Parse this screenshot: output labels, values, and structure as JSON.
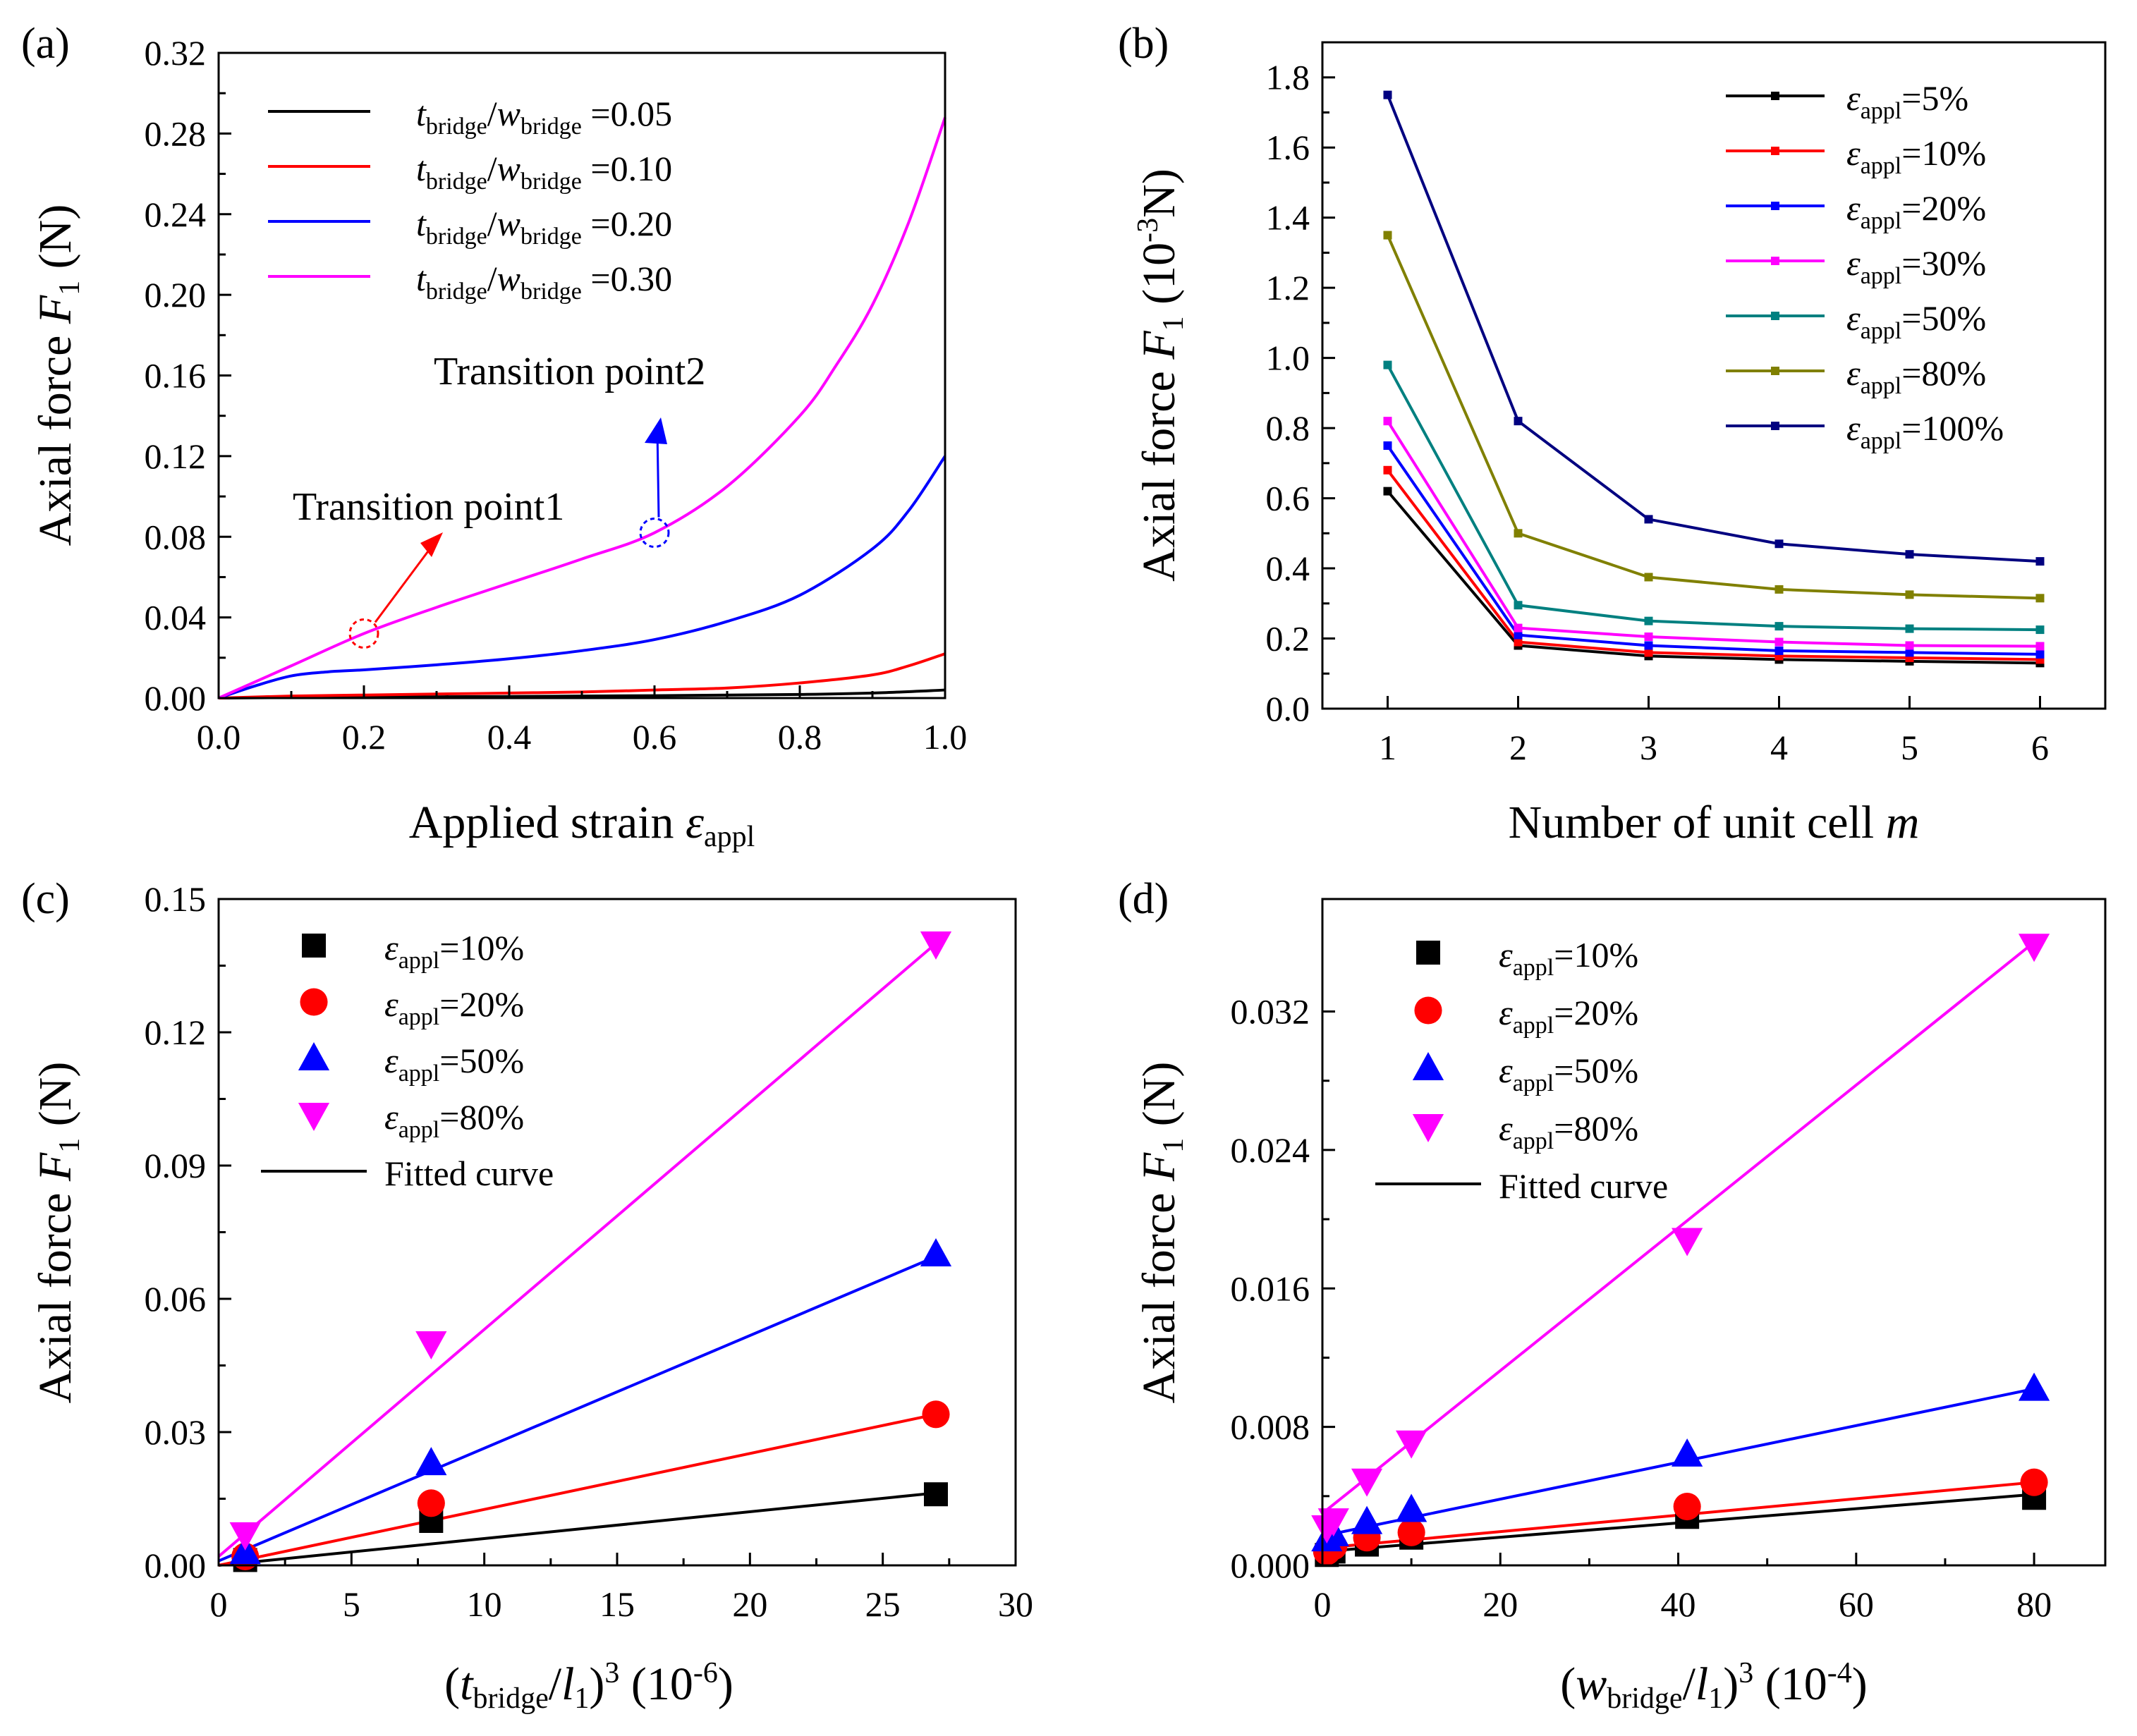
{
  "chart_data": [
    {
      "panel": "(a)",
      "type": "line",
      "xlabel": "Applied strain εappl",
      "ylabel": "Axial force F1 (N)",
      "xlim": [
        0,
        1.0
      ],
      "ylim": [
        0,
        0.32
      ],
      "xticks": [
        "0.0",
        "0.2",
        "0.4",
        "0.6",
        "0.8",
        "1.0"
      ],
      "yticks": [
        "0.00",
        "0.04",
        "0.08",
        "0.12",
        "0.16",
        "0.20",
        "0.24",
        "0.28",
        "0.32"
      ],
      "legend_position": "top-left",
      "series": [
        {
          "name": "tbridge/wbridge =0.05",
          "color": "#000000",
          "x": [
            0,
            0.2,
            0.4,
            0.6,
            0.8,
            0.9,
            1.0
          ],
          "y": [
            0,
            0.0005,
            0.0008,
            0.0012,
            0.0018,
            0.0025,
            0.004
          ]
        },
        {
          "name": "tbridge/wbridge =0.10",
          "color": "#ff0000",
          "x": [
            0,
            0.1,
            0.2,
            0.3,
            0.4,
            0.5,
            0.6,
            0.7,
            0.8,
            0.9,
            0.95,
            1.0
          ],
          "y": [
            0,
            0.001,
            0.0015,
            0.002,
            0.0025,
            0.003,
            0.004,
            0.005,
            0.0075,
            0.0115,
            0.016,
            0.022
          ]
        },
        {
          "name": "tbridge/wbridge =0.20",
          "color": "#0000ff",
          "x": [
            0,
            0.05,
            0.1,
            0.15,
            0.2,
            0.3,
            0.4,
            0.5,
            0.6,
            0.7,
            0.8,
            0.9,
            0.95,
            1.0
          ],
          "y": [
            0,
            0.006,
            0.011,
            0.013,
            0.014,
            0.0165,
            0.0195,
            0.0235,
            0.029,
            0.038,
            0.051,
            0.074,
            0.093,
            0.12
          ]
        },
        {
          "name": "tbridge/wbridge =0.30",
          "color": "#ff00ff",
          "x": [
            0,
            0.1,
            0.2,
            0.3,
            0.4,
            0.5,
            0.6,
            0.7,
            0.8,
            0.85,
            0.9,
            0.95,
            1.0
          ],
          "y": [
            0,
            0.016,
            0.032,
            0.045,
            0.057,
            0.069,
            0.082,
            0.105,
            0.14,
            0.165,
            0.195,
            0.236,
            0.288
          ]
        }
      ],
      "annotations": [
        {
          "text": "Transition point1",
          "x": 0.2,
          "y": 0.032,
          "color": "#ff0000"
        },
        {
          "text": "Transition point2",
          "x": 0.6,
          "y": 0.082,
          "color": "#0000ff"
        }
      ]
    },
    {
      "panel": "(b)",
      "type": "line",
      "xlabel": "Number of unit cell m",
      "ylabel": "Axial force F1 (10-3N)",
      "xlim": [
        0.5,
        6.5
      ],
      "ylim": [
        0,
        1.9
      ],
      "xticks": [
        "1",
        "2",
        "3",
        "4",
        "5",
        "6"
      ],
      "yticks": [
        "0.0",
        "0.2",
        "0.4",
        "0.6",
        "0.8",
        "1.0",
        "1.2",
        "1.4",
        "1.6",
        "1.8"
      ],
      "legend_position": "top-right",
      "x": [
        1,
        2,
        3,
        4,
        5,
        6
      ],
      "series": [
        {
          "name": "εappl=5%",
          "color": "#000000",
          "values": [
            0.62,
            0.18,
            0.15,
            0.14,
            0.135,
            0.13
          ]
        },
        {
          "name": "εappl=10%",
          "color": "#ff0000",
          "values": [
            0.68,
            0.19,
            0.16,
            0.15,
            0.145,
            0.14
          ]
        },
        {
          "name": "εappl=20%",
          "color": "#0000ff",
          "values": [
            0.75,
            0.21,
            0.18,
            0.165,
            0.16,
            0.155
          ]
        },
        {
          "name": "εappl=30%",
          "color": "#ff00ff",
          "values": [
            0.82,
            0.23,
            0.205,
            0.19,
            0.18,
            0.178
          ]
        },
        {
          "name": "εappl=50%",
          "color": "#008080",
          "values": [
            0.98,
            0.295,
            0.25,
            0.235,
            0.228,
            0.225
          ]
        },
        {
          "name": "εappl=80%",
          "color": "#808000",
          "values": [
            1.35,
            0.5,
            0.375,
            0.34,
            0.325,
            0.315
          ]
        },
        {
          "name": "εappl=100%",
          "color": "#000080",
          "values": [
            1.75,
            0.82,
            0.54,
            0.47,
            0.44,
            0.42
          ]
        }
      ]
    },
    {
      "panel": "(c)",
      "type": "scatter",
      "xlabel": "(tbridge/l1)3 (10-6)",
      "ylabel": "Axial force F1 (N)",
      "xlim": [
        0,
        30
      ],
      "ylim": [
        0,
        0.15
      ],
      "xticks": [
        "0",
        "5",
        "10",
        "15",
        "20",
        "25",
        "30"
      ],
      "yticks": [
        "0.00",
        "0.03",
        "0.06",
        "0.09",
        "0.12",
        "0.15"
      ],
      "legend_position": "top-left",
      "fit_legend": "Fitted curve",
      "series": [
        {
          "name": "εappl=10%",
          "color": "#000000",
          "marker": "square",
          "x": [
            1,
            8,
            27
          ],
          "y": [
            0.0012,
            0.01,
            0.016
          ],
          "fit": [
            [
              0,
              0.0
            ],
            [
              27,
              0.0163
            ]
          ]
        },
        {
          "name": "εappl=20%",
          "color": "#ff0000",
          "marker": "circle",
          "x": [
            1,
            8,
            27
          ],
          "y": [
            0.002,
            0.014,
            0.034
          ],
          "fit": [
            [
              0,
              0.0
            ],
            [
              27,
              0.034
            ]
          ]
        },
        {
          "name": "εappl=50%",
          "color": "#0000ff",
          "marker": "triangle-up",
          "x": [
            1,
            8,
            27
          ],
          "y": [
            0.003,
            0.023,
            0.07
          ],
          "fit": [
            [
              0,
              0.001
            ],
            [
              27,
              0.0695
            ]
          ]
        },
        {
          "name": "εappl=80%",
          "color": "#ff00ff",
          "marker": "triangle-down",
          "x": [
            1,
            8,
            27
          ],
          "y": [
            0.007,
            0.05,
            0.14
          ],
          "fit": [
            [
              0,
              0.002
            ],
            [
              27,
              0.14
            ]
          ]
        }
      ]
    },
    {
      "panel": "(d)",
      "type": "scatter",
      "xlabel": "(wbridge/l1)3 (10-4)",
      "ylabel": "Axial force F1 (N)",
      "xlim": [
        0,
        88
      ],
      "ylim": [
        0,
        0.0385
      ],
      "xticks": [
        "0",
        "20",
        "40",
        "60",
        "80"
      ],
      "yticks": [
        "0.000",
        "0.008",
        "0.016",
        "0.024",
        "0.032"
      ],
      "legend_position": "top-left",
      "fit_legend": "Fitted curve",
      "series": [
        {
          "name": "εappl=10%",
          "color": "#000000",
          "marker": "square",
          "x": [
            0.5,
            1.25,
            5,
            10,
            41,
            80
          ],
          "y": [
            0.0006,
            0.0008,
            0.0012,
            0.0016,
            0.0028,
            0.0039
          ],
          "fit": [
            [
              0,
              0.0008
            ],
            [
              80,
              0.0041
            ]
          ]
        },
        {
          "name": "εappl=20%",
          "color": "#ff0000",
          "marker": "circle",
          "x": [
            0.5,
            1.25,
            5,
            10,
            41,
            80
          ],
          "y": [
            0.0008,
            0.0011,
            0.0016,
            0.0019,
            0.0034,
            0.0048
          ],
          "fit": [
            [
              0,
              0.001
            ],
            [
              80,
              0.0048
            ]
          ]
        },
        {
          "name": "εappl=50%",
          "color": "#0000ff",
          "marker": "triangle-up",
          "x": [
            0.5,
            1.25,
            5,
            10,
            41,
            80
          ],
          "y": [
            0.0015,
            0.0018,
            0.0025,
            0.0032,
            0.0064,
            0.0102
          ],
          "fit": [
            [
              0,
              0.0017
            ],
            [
              80,
              0.0102
            ]
          ]
        },
        {
          "name": "εappl=80%",
          "color": "#ff00ff",
          "marker": "triangle-down",
          "x": [
            0.5,
            1.25,
            5,
            10,
            41,
            80
          ],
          "y": [
            0.0022,
            0.0026,
            0.0049,
            0.0071,
            0.0188,
            0.0358
          ],
          "fit": [
            [
              0,
              0.003
            ],
            [
              80,
              0.036
            ]
          ]
        }
      ]
    }
  ]
}
